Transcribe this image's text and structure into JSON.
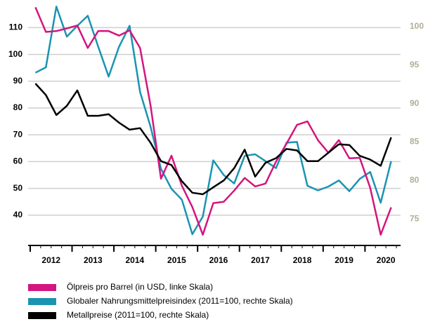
{
  "chart_data": {
    "type": "line",
    "x": [
      2012.125,
      2012.375,
      2012.625,
      2012.875,
      2013.125,
      2013.375,
      2013.625,
      2013.875,
      2014.125,
      2014.375,
      2014.625,
      2014.875,
      2015.125,
      2015.375,
      2015.625,
      2015.875,
      2016.125,
      2016.375,
      2016.625,
      2016.875,
      2017.125,
      2017.375,
      2017.625,
      2017.875,
      2018.125,
      2018.375,
      2018.625,
      2018.875,
      2019.125,
      2019.375,
      2019.625,
      2019.875,
      2020.125,
      2020.375,
      2020.625
    ],
    "xlim": [
      2011.95,
      2020.85
    ],
    "xticks": [
      {
        "value": 2012.5,
        "label": "2012"
      },
      {
        "value": 2013.5,
        "label": "2013"
      },
      {
        "value": 2014.5,
        "label": "2014"
      },
      {
        "value": 2015.5,
        "label": "2015"
      },
      {
        "value": 2016.5,
        "label": "2016"
      },
      {
        "value": 2017.5,
        "label": "2017"
      },
      {
        "value": 2018.5,
        "label": "2018"
      },
      {
        "value": 2019.5,
        "label": "2019"
      },
      {
        "value": 2020.5,
        "label": "2020"
      }
    ],
    "ylim": [
      30,
      119
    ],
    "yticks": [
      40,
      50,
      60,
      70,
      80,
      90,
      100,
      110
    ],
    "y2lim": [
      72,
      103
    ],
    "y2ticks": [
      75,
      80,
      85,
      90,
      95,
      100
    ],
    "grid": true,
    "series": [
      {
        "name": "Ölpreis pro Barrel (in USD, linke Skala)",
        "color": "#d4157f",
        "values": [
          117.6,
          108.4,
          108.7,
          109.7,
          110.8,
          102.4,
          108.7,
          108.7,
          107,
          109,
          102.4,
          81,
          53.6,
          62.2,
          51,
          43,
          32.7,
          44.5,
          45,
          49.2,
          53.9,
          50.7,
          51.8,
          60,
          66.7,
          73.7,
          75,
          68,
          63.3,
          68,
          61.2,
          61.4,
          50.2,
          32.7,
          42.9
        ]
      },
      {
        "name": "Globaler Nahrungsmittelpreisindex (2011=100, rechte Skala)",
        "color": "#1a94b0",
        "axis": "y2",
        "values": [
          94,
          94.7,
          102.6,
          98.7,
          100.1,
          101.4,
          97.4,
          93.5,
          97.4,
          100.1,
          91.5,
          87,
          81.5,
          78.9,
          77.5,
          73,
          75.3,
          82.6,
          80.7,
          79.6,
          83.2,
          83.4,
          82.5,
          81.6,
          84.9,
          85,
          79.3,
          78.7,
          79.2,
          80,
          78.6,
          80.2,
          81.1,
          77.1,
          82.5
        ]
      },
      {
        "name": "Metallpreise (2011=100, rechte Skala)",
        "color": "#000000",
        "axis": "y2",
        "values": [
          92.6,
          91.1,
          88.5,
          89.7,
          91.7,
          88.4,
          88.4,
          88.6,
          87.5,
          86.6,
          86.8,
          84.9,
          82.5,
          82,
          79.9,
          78.4,
          78.2,
          79.1,
          80,
          81.6,
          84,
          80.5,
          82.3,
          82.9,
          84.1,
          83.9,
          82.5,
          82.5,
          83.6,
          84.7,
          84.6,
          83.2,
          82.7,
          81.9,
          85.6
        ]
      }
    ]
  }
}
